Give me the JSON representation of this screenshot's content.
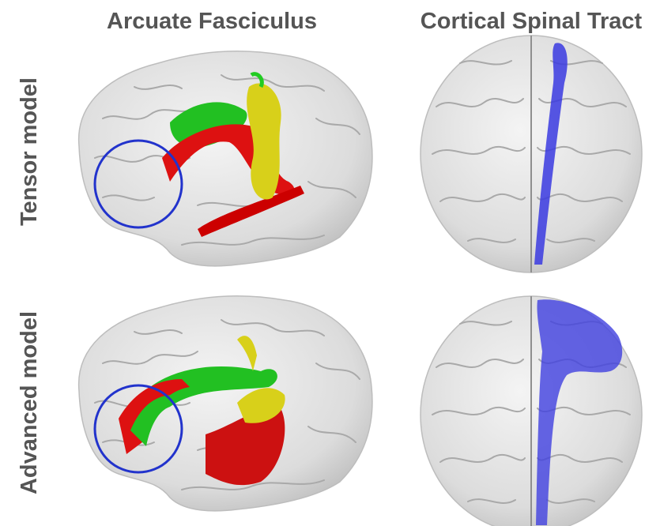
{
  "column_headers": [
    "Arcuate Fasciculus",
    "Cortical Spinal Tract"
  ],
  "row_labels": [
    "Tensor model",
    "Advanced model"
  ]
}
